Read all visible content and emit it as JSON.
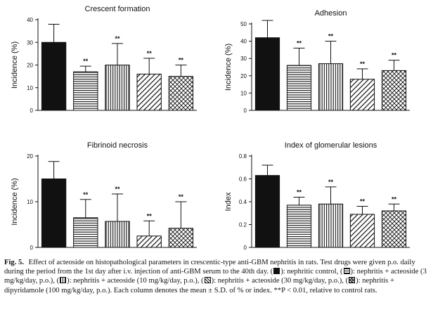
{
  "figure": {
    "caption_label": "Fig. 5.",
    "caption_parts": [
      "Effect of acteoside on histopathological parameters in crescentic-type anti-GBM nephritis in rats. Test drugs were given p.o. daily during the period from the 1st day after i.v. injection of anti-GBM serum to the 40th day. (",
      "): nephritic control, (",
      "): nephritis + acteoside (3 mg/kg/day, p.o.), (",
      "): nephritis + acteoside (10 mg/kg/day, p.o.), (",
      "): nephritis + acteoside (30 mg/kg/day, p.o.), (",
      "): nephritis + dipyridamole (100 mg/kg/day, p.o.). Each column denotes the mean ± S.D. of % or index. **P < 0.01, relative to control rats."
    ],
    "colors": {
      "ink": "#111111",
      "background": "#ffffff"
    },
    "patterns": [
      "solid",
      "horizontal-lines",
      "vertical-lines",
      "diagonal-lines",
      "crosshatch"
    ]
  },
  "chart_data": [
    {
      "type": "bar",
      "title": "Crescent formation",
      "ylabel": "Incidence (%)",
      "ylim": [
        0,
        40
      ],
      "yticks": [
        0,
        10,
        20,
        30,
        40
      ],
      "categories": [
        "",
        "",
        "",
        "",
        ""
      ],
      "values": [
        30,
        17,
        20,
        16,
        15
      ],
      "errors": [
        8,
        2.5,
        9.5,
        7,
        5
      ],
      "significance": [
        "",
        "**",
        "**",
        "**",
        "**"
      ]
    },
    {
      "type": "bar",
      "title": "Adhesion",
      "ylabel": "Incidence (%)",
      "ylim": [
        0,
        50
      ],
      "yticks": [
        0,
        10,
        20,
        30,
        40,
        50
      ],
      "categories": [
        "",
        "",
        "",
        "",
        ""
      ],
      "values": [
        42,
        26,
        27,
        18,
        23
      ],
      "errors": [
        10,
        10,
        13,
        6,
        6
      ],
      "significance": [
        "",
        "**",
        "**",
        "**",
        "**"
      ]
    },
    {
      "type": "bar",
      "title": "Fibrinoid necrosis",
      "ylabel": "Incidence (%)",
      "ylim": [
        0,
        20
      ],
      "yticks": [
        0,
        10,
        20
      ],
      "categories": [
        "",
        "",
        "",
        "",
        ""
      ],
      "values": [
        15,
        6.5,
        5.7,
        2.5,
        4.2
      ],
      "errors": [
        3.8,
        4,
        6,
        3.3,
        5.8
      ],
      "significance": [
        "",
        "**",
        "**",
        "**",
        "**"
      ]
    },
    {
      "type": "bar",
      "title": "Index of glomerular lesions",
      "ylabel": "Index",
      "ylim": [
        0,
        0.8
      ],
      "yticks": [
        0,
        0.2,
        0.4,
        0.6,
        0.8
      ],
      "ytick_labels": [
        "0",
        "0.2",
        "0.4",
        "0.6",
        "0.8"
      ],
      "categories": [
        "",
        "",
        "",
        "",
        ""
      ],
      "values": [
        0.63,
        0.37,
        0.38,
        0.29,
        0.32
      ],
      "errors": [
        0.09,
        0.07,
        0.15,
        0.07,
        0.06
      ],
      "significance": [
        "",
        "**",
        "**",
        "**",
        "**"
      ]
    }
  ]
}
